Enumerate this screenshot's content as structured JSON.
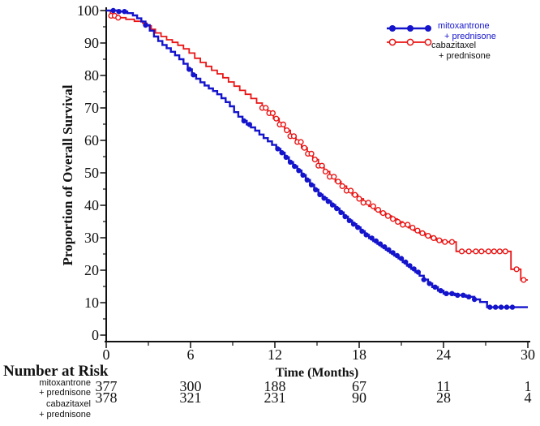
{
  "colors": {
    "mitoxantrone_blue": "#1414cc",
    "cabazitaxel_red": "#e91515",
    "axis_text": "#111111",
    "background": "#ffffff"
  },
  "legend": {
    "items": [
      {
        "line1": "mitoxantrone",
        "line2": "+ prednisone",
        "color": "#1414cc",
        "marker": "filled-circle"
      },
      {
        "line1": "cabazitaxel",
        "line2": "+ prednisone",
        "color": "#e91515",
        "marker": "open-circle"
      }
    ]
  },
  "risk_table": {
    "title": "Number at Risk",
    "time_points": [
      0,
      6,
      12,
      18,
      24,
      30
    ],
    "rows": [
      {
        "label_line1": "mitoxantrone",
        "label_line2": "+ prednisone",
        "counts": [
          "377",
          "300",
          "188",
          "67",
          "11",
          "1"
        ]
      },
      {
        "label_line1": "cabazitaxel",
        "label_line2": "+ prednisone",
        "counts": [
          "378",
          "321",
          "231",
          "90",
          "28",
          "4"
        ]
      }
    ]
  },
  "chart_data": {
    "type": "line",
    "subtype": "kaplan-meier-step",
    "title": "",
    "xlabel": "Time (Months)",
    "ylabel": "Proportion of Overall Survival",
    "xlim": [
      0,
      30
    ],
    "ylim": [
      0,
      100
    ],
    "xticks": [
      0,
      6,
      12,
      18,
      24,
      30
    ],
    "xticks_minor": [
      3,
      9,
      15,
      21,
      27
    ],
    "yticks": [
      0,
      10,
      20,
      30,
      40,
      50,
      60,
      70,
      80,
      90,
      100
    ],
    "yticks_minor": [
      5,
      15,
      25,
      35,
      45,
      55,
      65,
      75,
      85,
      95
    ],
    "grid": false,
    "legend_position": "top-right",
    "series": [
      {
        "name": "mitoxantrone + prednisone",
        "color": "#1414cc",
        "marker": "filled-circle",
        "points": [
          [
            0,
            100
          ],
          [
            0.9,
            99.7
          ],
          [
            1.5,
            99.2
          ],
          [
            1.9,
            98.5
          ],
          [
            2.2,
            97.6
          ],
          [
            2.5,
            96.6
          ],
          [
            2.8,
            95.5
          ],
          [
            3.1,
            93.8
          ],
          [
            3.4,
            92.0
          ],
          [
            3.7,
            90.6
          ],
          [
            4.0,
            89.4
          ],
          [
            4.3,
            88.4
          ],
          [
            4.6,
            87.3
          ],
          [
            4.9,
            86.2
          ],
          [
            5.2,
            85.0
          ],
          [
            5.5,
            83.6
          ],
          [
            5.8,
            81.9
          ],
          [
            6.1,
            80.2
          ],
          [
            6.4,
            79.0
          ],
          [
            6.7,
            77.9
          ],
          [
            7.0,
            76.9
          ],
          [
            7.3,
            76.0
          ],
          [
            7.6,
            75.2
          ],
          [
            7.9,
            74.2
          ],
          [
            8.2,
            73.0
          ],
          [
            8.5,
            71.8
          ],
          [
            8.8,
            70.5
          ],
          [
            9.1,
            68.7
          ],
          [
            9.4,
            67.3
          ],
          [
            9.7,
            66.0
          ],
          [
            10.0,
            64.9
          ],
          [
            10.3,
            64.0
          ],
          [
            10.6,
            63.0
          ],
          [
            10.9,
            61.8
          ],
          [
            11.2,
            60.7
          ],
          [
            11.5,
            59.7
          ],
          [
            11.8,
            58.6
          ],
          [
            12.1,
            57.4
          ],
          [
            12.4,
            56.2
          ],
          [
            12.7,
            54.8
          ],
          [
            13.0,
            53.3
          ],
          [
            13.3,
            52.0
          ],
          [
            13.6,
            50.7
          ],
          [
            13.9,
            49.3
          ],
          [
            14.2,
            47.8
          ],
          [
            14.5,
            46.3
          ],
          [
            14.8,
            44.8
          ],
          [
            15.1,
            43.3
          ],
          [
            15.4,
            42.2
          ],
          [
            15.7,
            41.2
          ],
          [
            16.0,
            40.1
          ],
          [
            16.3,
            39.0
          ],
          [
            16.6,
            37.8
          ],
          [
            16.9,
            36.5
          ],
          [
            17.2,
            35.3
          ],
          [
            17.5,
            34.2
          ],
          [
            17.8,
            33.2
          ],
          [
            18.1,
            32.0
          ],
          [
            18.4,
            30.9
          ],
          [
            18.7,
            29.9
          ],
          [
            19.0,
            29.0
          ],
          [
            19.3,
            28.1
          ],
          [
            19.6,
            27.2
          ],
          [
            19.9,
            26.3
          ],
          [
            20.2,
            25.4
          ],
          [
            20.5,
            24.5
          ],
          [
            20.8,
            23.6
          ],
          [
            21.1,
            22.5
          ],
          [
            21.4,
            21.4
          ],
          [
            21.7,
            20.4
          ],
          [
            22.0,
            19.4
          ],
          [
            22.3,
            18.3
          ],
          [
            22.6,
            17.1
          ],
          [
            22.9,
            15.9
          ],
          [
            23.2,
            14.8
          ],
          [
            23.6,
            13.7
          ],
          [
            24.0,
            12.8
          ],
          [
            24.8,
            12.3
          ],
          [
            25.6,
            11.8
          ],
          [
            26.2,
            11.0
          ],
          [
            26.6,
            10.2
          ],
          [
            27.1,
            8.6
          ],
          [
            30,
            8.6
          ]
        ],
        "censor_marks": [
          0.5,
          0.9,
          1.3,
          2.8,
          5.9,
          6.2,
          9.8,
          10.2,
          12.2,
          12.5,
          12.8,
          13.1,
          13.4,
          13.7,
          14.0,
          14.3,
          14.6,
          14.9,
          15.2,
          15.5,
          15.8,
          16.1,
          16.4,
          16.7,
          17.0,
          17.3,
          17.6,
          17.9,
          18.2,
          18.5,
          18.9,
          19.2,
          19.5,
          19.8,
          20.1,
          20.4,
          20.7,
          21.0,
          21.3,
          21.6,
          21.9,
          22.2,
          22.6,
          23.0,
          23.4,
          23.8,
          24.2,
          24.6,
          25.0,
          25.4,
          25.8,
          26.2,
          27.3,
          27.7,
          28.1,
          28.5,
          28.9
        ]
      },
      {
        "name": "cabazitaxel + prednisone",
        "color": "#e91515",
        "marker": "open-circle",
        "points": [
          [
            0,
            100
          ],
          [
            0.3,
            98.4
          ],
          [
            0.8,
            97.8
          ],
          [
            1.4,
            97.3
          ],
          [
            2.0,
            96.7
          ],
          [
            2.6,
            96.1
          ],
          [
            2.9,
            95.3
          ],
          [
            3.2,
            94.2
          ],
          [
            3.5,
            93.1
          ],
          [
            3.9,
            92.0
          ],
          [
            4.3,
            91.0
          ],
          [
            4.7,
            90.2
          ],
          [
            5.1,
            89.3
          ],
          [
            5.5,
            88.2
          ],
          [
            5.9,
            86.9
          ],
          [
            6.3,
            85.3
          ],
          [
            6.7,
            84.0
          ],
          [
            7.1,
            82.8
          ],
          [
            7.5,
            81.6
          ],
          [
            7.9,
            80.5
          ],
          [
            8.3,
            79.3
          ],
          [
            8.7,
            78.0
          ],
          [
            9.1,
            76.7
          ],
          [
            9.5,
            75.4
          ],
          [
            9.9,
            74.2
          ],
          [
            10.3,
            72.9
          ],
          [
            10.7,
            71.5
          ],
          [
            11.1,
            70.0
          ],
          [
            11.5,
            68.4
          ],
          [
            11.9,
            66.7
          ],
          [
            12.3,
            64.9
          ],
          [
            12.7,
            63.1
          ],
          [
            13.1,
            61.3
          ],
          [
            13.5,
            59.5
          ],
          [
            13.9,
            57.7
          ],
          [
            14.3,
            55.9
          ],
          [
            14.7,
            54.1
          ],
          [
            15.1,
            52.2
          ],
          [
            15.5,
            50.4
          ],
          [
            15.9,
            48.8
          ],
          [
            16.3,
            47.3
          ],
          [
            16.7,
            45.9
          ],
          [
            17.1,
            44.5
          ],
          [
            17.5,
            43.2
          ],
          [
            17.9,
            42.0
          ],
          [
            18.3,
            40.8
          ],
          [
            18.7,
            39.7
          ],
          [
            19.1,
            38.6
          ],
          [
            19.5,
            37.6
          ],
          [
            19.9,
            36.7
          ],
          [
            20.3,
            35.8
          ],
          [
            20.7,
            34.9
          ],
          [
            21.1,
            34.0
          ],
          [
            21.5,
            33.1
          ],
          [
            21.9,
            32.2
          ],
          [
            22.3,
            31.4
          ],
          [
            22.7,
            30.6
          ],
          [
            23.1,
            29.9
          ],
          [
            23.5,
            29.2
          ],
          [
            23.9,
            28.7
          ],
          [
            24.9,
            25.8
          ],
          [
            28.8,
            20.3
          ],
          [
            29.5,
            17.0
          ],
          [
            30,
            17.0
          ]
        ],
        "censor_marks": [
          0.35,
          0.6,
          0.85,
          11.1,
          11.35,
          11.6,
          11.85,
          12.1,
          12.35,
          12.6,
          12.85,
          13.1,
          13.35,
          13.6,
          13.85,
          14.1,
          14.35,
          14.6,
          14.85,
          15.1,
          15.35,
          15.6,
          15.9,
          16.2,
          16.5,
          16.8,
          17.1,
          17.4,
          17.7,
          18.0,
          18.3,
          18.65,
          19.0,
          19.35,
          19.7,
          20.05,
          20.4,
          20.75,
          21.1,
          21.45,
          21.8,
          22.15,
          22.5,
          22.9,
          23.3,
          23.7,
          24.1,
          24.6,
          25.3,
          25.8,
          26.3,
          26.7,
          27.2,
          27.6,
          28.0,
          28.4,
          29.2,
          29.7
        ]
      }
    ]
  }
}
